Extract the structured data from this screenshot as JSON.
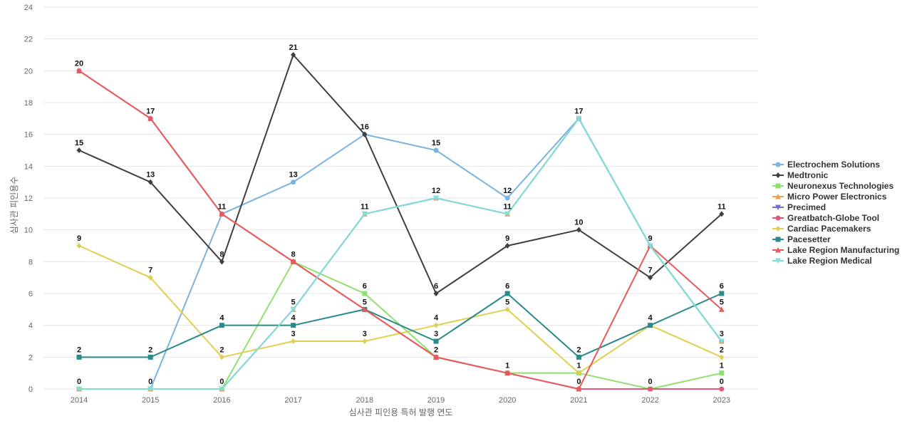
{
  "chart_data": {
    "type": "line",
    "title": "",
    "xlabel": "심사관 피인용 특허 발행 연도",
    "ylabel": "심사관 피인용수",
    "ylim": [
      0,
      24
    ],
    "yticks": [
      0,
      2,
      4,
      6,
      8,
      10,
      12,
      14,
      16,
      18,
      20,
      22,
      24
    ],
    "grid": true,
    "legend_position": "right",
    "categories": [
      "2014",
      "2015",
      "2016",
      "2017",
      "2018",
      "2019",
      "2020",
      "2021",
      "2022",
      "2023"
    ],
    "series": [
      {
        "name": "Electrochem Solutions",
        "color": "#7ab3e0",
        "marker": "circle",
        "values": [
          0,
          0,
          11,
          13,
          16,
          15,
          12,
          17,
          9,
          3
        ]
      },
      {
        "name": "Medtronic",
        "color": "#3f3f3f",
        "marker": "diamond",
        "values": [
          15,
          13,
          8,
          21,
          16,
          6,
          9,
          10,
          7,
          11
        ]
      },
      {
        "name": "Neuronexus Technologies",
        "color": "#90e070",
        "marker": "square",
        "values": [
          0,
          0,
          0,
          8,
          6,
          2,
          1,
          1,
          0,
          1
        ]
      },
      {
        "name": "Micro Power Electronics",
        "color": "#f0a050",
        "marker": "triangle-up",
        "values": [
          0,
          0,
          0,
          5,
          11,
          12,
          11,
          17,
          9,
          3
        ]
      },
      {
        "name": "Precimed",
        "color": "#7070d8",
        "marker": "triangle-down",
        "values": [
          0,
          0,
          0,
          5,
          11,
          12,
          11,
          17,
          9,
          3
        ]
      },
      {
        "name": "Greatbatch-Globe Tool",
        "color": "#e8557a",
        "marker": "circle",
        "values": [
          20,
          17,
          11,
          8,
          5,
          2,
          1,
          0,
          0,
          0
        ]
      },
      {
        "name": "Cardiac Pacemakers",
        "color": "#e0cf50",
        "marker": "diamond",
        "values": [
          9,
          7,
          2,
          3,
          3,
          4,
          5,
          1,
          4,
          2
        ]
      },
      {
        "name": "Pacesetter",
        "color": "#2a8a8a",
        "marker": "square",
        "values": [
          2,
          2,
          4,
          4,
          5,
          3,
          6,
          2,
          4,
          6
        ]
      },
      {
        "name": "Lake Region Manufacturing",
        "color": "#e85a5a",
        "marker": "triangle-up",
        "values": [
          20,
          17,
          11,
          8,
          5,
          2,
          1,
          0,
          9,
          5
        ]
      },
      {
        "name": "Lake Region Medical",
        "color": "#80e0d8",
        "marker": "triangle-down",
        "values": [
          0,
          0,
          0,
          5,
          11,
          12,
          11,
          17,
          9,
          3
        ]
      }
    ],
    "data_labels": [
      {
        "x": "2014",
        "value": 20
      },
      {
        "x": "2014",
        "value": 15
      },
      {
        "x": "2014",
        "value": 9
      },
      {
        "x": "2014",
        "value": 2
      },
      {
        "x": "2014",
        "value": 0
      },
      {
        "x": "2015",
        "value": 17
      },
      {
        "x": "2015",
        "value": 13
      },
      {
        "x": "2015",
        "value": 7
      },
      {
        "x": "2015",
        "value": 2
      },
      {
        "x": "2015",
        "value": 0
      },
      {
        "x": "2016",
        "value": 11
      },
      {
        "x": "2016",
        "value": 8
      },
      {
        "x": "2016",
        "value": 4
      },
      {
        "x": "2016",
        "value": 2
      },
      {
        "x": "2016",
        "value": 0
      },
      {
        "x": "2017",
        "value": 21
      },
      {
        "x": "2017",
        "value": 13
      },
      {
        "x": "2017",
        "value": 8
      },
      {
        "x": "2017",
        "value": 5
      },
      {
        "x": "2017",
        "value": 4
      },
      {
        "x": "2017",
        "value": 3
      },
      {
        "x": "2018",
        "value": 16
      },
      {
        "x": "2018",
        "value": 11
      },
      {
        "x": "2018",
        "value": 6
      },
      {
        "x": "2018",
        "value": 5
      },
      {
        "x": "2018",
        "value": 3
      },
      {
        "x": "2019",
        "value": 15
      },
      {
        "x": "2019",
        "value": 12
      },
      {
        "x": "2019",
        "value": 6
      },
      {
        "x": "2019",
        "value": 4
      },
      {
        "x": "2019",
        "value": 3
      },
      {
        "x": "2019",
        "value": 2
      },
      {
        "x": "2020",
        "value": 12
      },
      {
        "x": "2020",
        "value": 11
      },
      {
        "x": "2020",
        "value": 9
      },
      {
        "x": "2020",
        "value": 6
      },
      {
        "x": "2020",
        "value": 5
      },
      {
        "x": "2020",
        "value": 1
      },
      {
        "x": "2021",
        "value": 17
      },
      {
        "x": "2021",
        "value": 10
      },
      {
        "x": "2021",
        "value": 2
      },
      {
        "x": "2021",
        "value": 1
      },
      {
        "x": "2021",
        "value": 0
      },
      {
        "x": "2022",
        "value": 9
      },
      {
        "x": "2022",
        "value": 7
      },
      {
        "x": "2022",
        "value": 4
      },
      {
        "x": "2022",
        "value": 0
      },
      {
        "x": "2023",
        "value": 11
      },
      {
        "x": "2023",
        "value": 6
      },
      {
        "x": "2023",
        "value": 5
      },
      {
        "x": "2023",
        "value": 3
      },
      {
        "x": "2023",
        "value": 2
      },
      {
        "x": "2023",
        "value": 1
      },
      {
        "x": "2023",
        "value": 0
      }
    ]
  }
}
